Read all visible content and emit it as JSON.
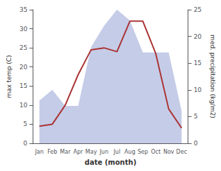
{
  "chart_data": {
    "type": "line",
    "xlabel": "date (month)",
    "ylabel": "max temp (C)",
    "y2label": "med. precipitation (kg/m2)",
    "categories": [
      "Jan",
      "Feb",
      "Mar",
      "Apr",
      "May",
      "Jun",
      "Jul",
      "Aug",
      "Sep",
      "Oct",
      "Nov",
      "Dec"
    ],
    "series": [
      {
        "type": "area",
        "axis": "y2",
        "color": "#c5cce8",
        "values": [
          8.0,
          10.0,
          7.0,
          7.0,
          18.0,
          22.0,
          25.0,
          23.0,
          17.0,
          17.0,
          17.0,
          6.0
        ]
      },
      {
        "type": "line",
        "color": "#aa3333",
        "values": [
          4.5,
          5.0,
          10.0,
          18.0,
          24.5,
          25.0,
          24.0,
          32.0,
          32.0,
          23.5,
          9.0,
          4.0
        ]
      }
    ],
    "ylim": [
      0,
      35
    ],
    "yticks": [
      0,
      5,
      10,
      15,
      20,
      25,
      30,
      35
    ],
    "y2lim": [
      0,
      25
    ],
    "y2ticks": [
      0,
      5,
      10,
      15,
      20,
      25
    ],
    "grid": false
  }
}
